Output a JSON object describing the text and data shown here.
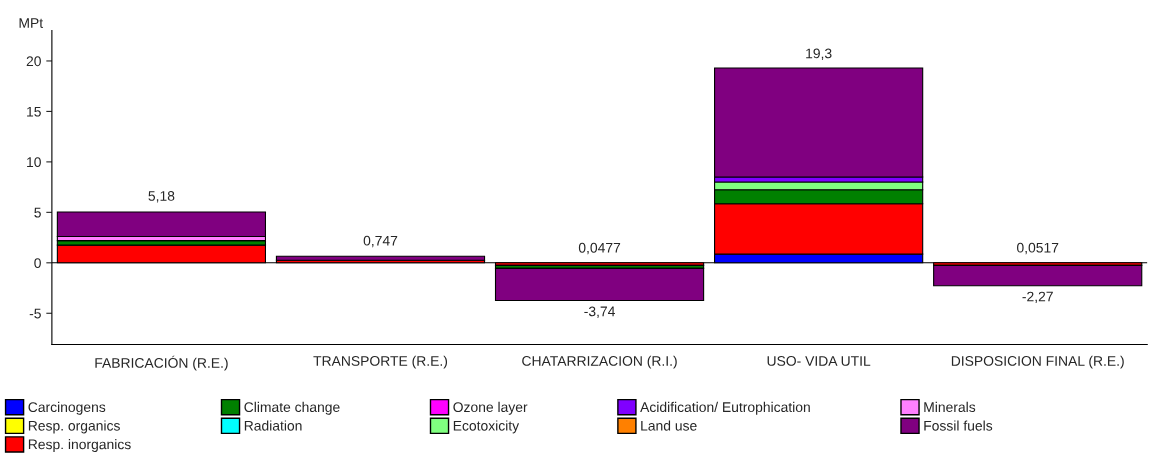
{
  "chart_data": {
    "type": "bar",
    "stacked": true,
    "ylabel": "MPt",
    "categories": [
      "FABRICACIÓN (R.E.)",
      "TRANSPORTE (R.E.)",
      "CHATARRIZACION (R.I.)",
      "USO- VIDA UTIL",
      "DISPOSICION FINAL (R.E.)"
    ],
    "series": [
      {
        "name": "Carcinogens",
        "color": "#0000ff",
        "values": [
          0,
          0,
          null,
          0.86,
          null
        ]
      },
      {
        "name": "Resp. organics",
        "color": "#ffff00",
        "values": [
          0,
          0,
          0,
          0,
          0
        ]
      },
      {
        "name": "Resp. inorganics",
        "color": "#ff0000",
        "values": [
          1.75,
          0.25,
          -0.25,
          4.99,
          -0.25
        ]
      },
      {
        "name": "Climate change",
        "color": "#008000",
        "values": [
          0.45,
          null,
          -0.3,
          1.39,
          0
        ]
      },
      {
        "name": "Radiation",
        "color": "#00ffff",
        "values": [
          0,
          0,
          0,
          0,
          0
        ]
      },
      {
        "name": "Ozone layer",
        "color": "#ff00ff",
        "values": [
          0,
          0,
          0,
          0,
          0
        ]
      },
      {
        "name": "Ecotoxicity",
        "color": "#80ff80",
        "values": [
          0,
          0,
          0,
          0.76,
          0
        ]
      },
      {
        "name": "Acidification/ Eutrophication",
        "color": "#8000ff",
        "values": [
          null,
          0,
          0,
          0.5,
          0
        ]
      },
      {
        "name": "Land use",
        "color": "#ff8000",
        "values": [
          0,
          0,
          0,
          0,
          0
        ]
      },
      {
        "name": "Minerals",
        "color": "#ff80ff",
        "values": [
          0.4,
          0,
          0,
          0,
          0
        ]
      },
      {
        "name": "Fossil fuels",
        "color": "#800080",
        "values": [
          2.43,
          0.397,
          -3.19,
          10.8,
          -2.02
        ]
      }
    ],
    "annotations": [
      {
        "text": "5,18",
        "x": "FABRICACIÓN (R.E.)",
        "y": 5.18
      },
      {
        "text": "0,747",
        "x": "TRANSPORTE (R.E.)",
        "y": 0.747
      },
      {
        "text": "0,0477",
        "x": "CHATARRIZACION (R.I.)",
        "y": 0.0477
      },
      {
        "text": "-3,74",
        "x": "CHATARRIZACION (R.I.)",
        "y": -3.74
      },
      {
        "text": "19,3",
        "x": "USO- VIDA UTIL",
        "y": 19.3
      },
      {
        "text": "0,0517",
        "x": "DISPOSICION FINAL (R.E.)",
        "y": 0.0517
      },
      {
        "text": "-2,27",
        "x": "DISPOSICION FINAL (R.E.)",
        "y": -2.27
      }
    ],
    "ref_lines": [
      {
        "axis": "y",
        "value": 0,
        "color": "#000000"
      }
    ],
    "ylim": [
      -8.1,
      23
    ],
    "yticks": [
      -5,
      0,
      5,
      10,
      15,
      20
    ],
    "legend": "bottom",
    "grid": false
  }
}
